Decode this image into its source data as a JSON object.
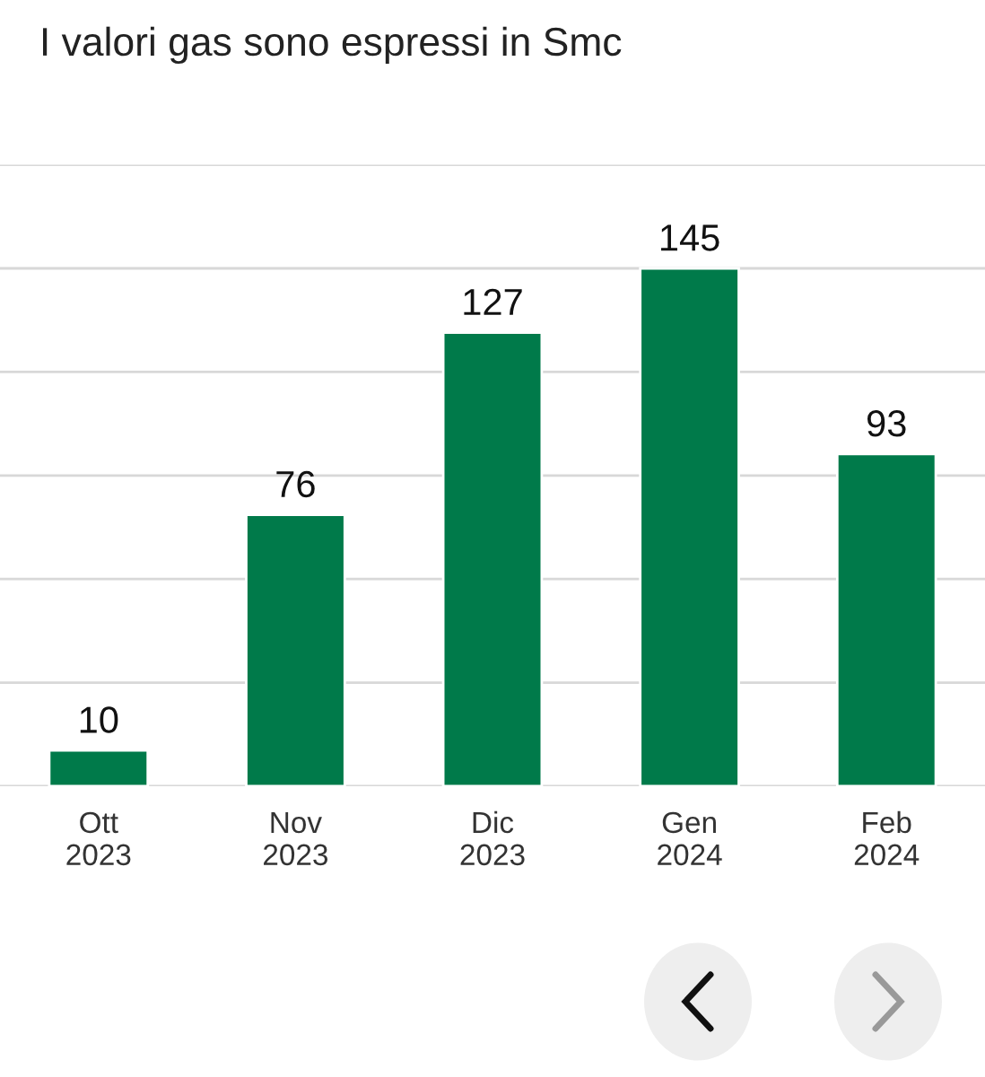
{
  "chart_data": {
    "type": "bar",
    "title": "I valori gas sono espressi in Smc",
    "categories": [
      "Ott\n2023",
      "Nov\n2023",
      "Dic\n2023",
      "Gen\n2024",
      "Feb\n2024"
    ],
    "values": [
      10,
      76,
      127,
      145,
      93
    ],
    "color": "#007a4a",
    "ylim": [
      0,
      174
    ],
    "yticks": [
      {
        "value": 0,
        "label": null
      },
      {
        "value": 29,
        "label": null
      },
      {
        "value": 58,
        "label": null
      },
      {
        "value": 87,
        "label": null
      },
      {
        "value": 116,
        "label": null
      },
      {
        "value": 145,
        "label": null
      },
      {
        "value": 174,
        "label": null
      }
    ],
    "grid": "y",
    "data_labels": true,
    "tick_labels": "x"
  }
}
